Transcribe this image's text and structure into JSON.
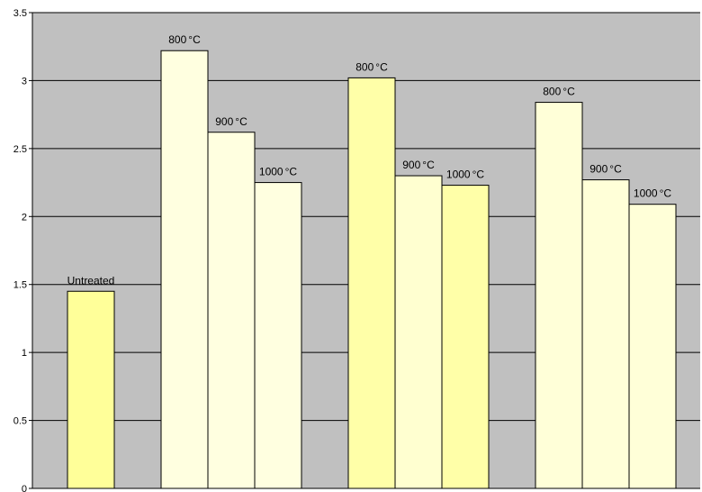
{
  "chart_data": {
    "type": "bar",
    "title": "",
    "xlabel": "",
    "ylabel": "",
    "ylim": [
      0,
      3.5
    ],
    "yticks": [
      "0",
      "0.5",
      "1",
      "1.5",
      "2",
      "2.5",
      "3",
      "3.5"
    ],
    "grid": true,
    "legend": "none",
    "background_color": "#c0c0c0",
    "bars": [
      {
        "group": 0,
        "label": "Untreated",
        "unit": "",
        "value": 1.45,
        "color": "#ffff99"
      },
      {
        "group": 1,
        "label": "800",
        "unit": "°C",
        "value": 3.22,
        "color": "#ffffe0"
      },
      {
        "group": 1,
        "label": "900",
        "unit": "°C",
        "value": 2.62,
        "color": "#ffffe0"
      },
      {
        "group": 1,
        "label": "1000",
        "unit": "°C",
        "value": 2.25,
        "color": "#ffffe0"
      },
      {
        "group": 2,
        "label": "800",
        "unit": "°C",
        "value": 3.02,
        "color": "#ffffa8"
      },
      {
        "group": 2,
        "label": "900",
        "unit": "°C",
        "value": 2.3,
        "color": "#ffffd0"
      },
      {
        "group": 2,
        "label": "1000",
        "unit": "°C",
        "value": 2.23,
        "color": "#ffffa8"
      },
      {
        "group": 3,
        "label": "800",
        "unit": "°C",
        "value": 2.84,
        "color": "#ffffd8"
      },
      {
        "group": 3,
        "label": "900",
        "unit": "°C",
        "value": 2.27,
        "color": "#ffffd8"
      },
      {
        "group": 3,
        "label": "1000",
        "unit": "°C",
        "value": 2.09,
        "color": "#ffffd8"
      }
    ]
  }
}
